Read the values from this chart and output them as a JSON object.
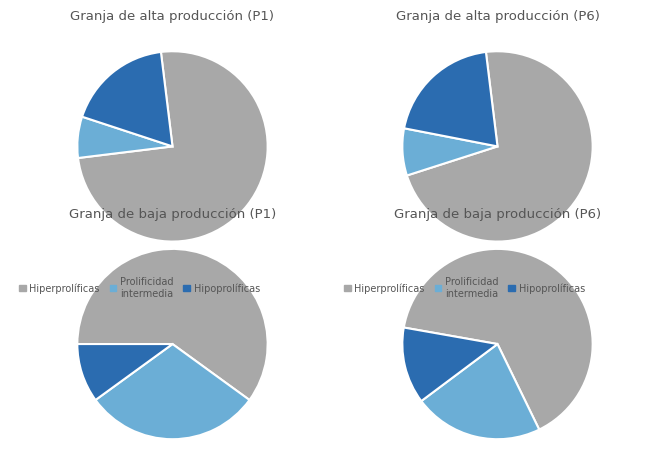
{
  "charts": [
    {
      "title": "Granja de alta producción (P1)",
      "sizes": [
        75,
        7,
        18
      ],
      "colors": [
        "#a8a8a8",
        "#6baed6",
        "#2b6cb0"
      ],
      "startangle": 97,
      "counterclock": false
    },
    {
      "title": "Granja de alta producción (P6)",
      "sizes": [
        72,
        8,
        20
      ],
      "colors": [
        "#a8a8a8",
        "#6baed6",
        "#2b6cb0"
      ],
      "startangle": 97,
      "counterclock": false
    },
    {
      "title": "Granja de baja producción (P1)",
      "sizes": [
        60,
        30,
        10
      ],
      "colors": [
        "#a8a8a8",
        "#6baed6",
        "#2b6cb0"
      ],
      "startangle": 180,
      "counterclock": false
    },
    {
      "title": "Granja de baja producción (P6)",
      "sizes": [
        65,
        22,
        13
      ],
      "colors": [
        "#a8a8a8",
        "#6baed6",
        "#2b6cb0"
      ],
      "startangle": 170,
      "counterclock": false
    }
  ],
  "legend_labels_row1": [
    "Hiperprolíficas",
    "Prolificidad\nintermedia",
    "Hipoprolíficas"
  ],
  "legend_labels_row2": [
    "Hiperprolíficas",
    "Prolificidad\nintermedia",
    "Hipoprolíficas"
  ],
  "legend_colors": [
    "#a8a8a8",
    "#6baed6",
    "#2b6cb0"
  ],
  "bg_color": "#ffffff",
  "title_fontsize": 9.5,
  "legend_fontsize": 7.0
}
